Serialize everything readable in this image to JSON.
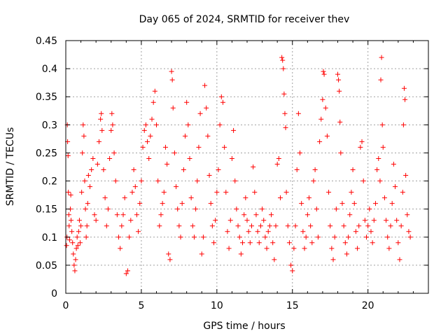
{
  "chart_data": {
    "type": "scatter",
    "title": "Day 065 of 2024, SRMTID for receiver thev",
    "xlabel": "GPS time / hours",
    "ylabel": "SRMTID / TECUs",
    "xlim": [
      0,
      24
    ],
    "ylim": [
      0,
      0.45
    ],
    "xticks": [
      0,
      5,
      10,
      15,
      20
    ],
    "xtick_labels": [
      "0",
      "5",
      "10",
      "15",
      "20"
    ],
    "yticks": [
      0,
      0.05,
      0.1,
      0.15,
      0.2,
      0.25,
      0.3,
      0.35,
      0.4,
      0.45
    ],
    "ytick_labels": [
      "0",
      "0.05",
      "0.1",
      "0.15",
      "0.2",
      "0.25",
      "0.3",
      "0.35",
      "0.4",
      "0.45"
    ],
    "grid": true,
    "marker": "plus",
    "color": "#ff0000",
    "series": [
      {
        "name": "SRMTID",
        "points": [
          [
            0.05,
            0.085
          ],
          [
            0.08,
            0.1
          ],
          [
            0.1,
            0.3
          ],
          [
            0.12,
            0.27
          ],
          [
            0.15,
            0.245
          ],
          [
            0.17,
            0.18
          ],
          [
            0.2,
            0.14
          ],
          [
            0.22,
            0.12
          ],
          [
            0.25,
            0.095
          ],
          [
            0.3,
            0.15
          ],
          [
            0.33,
            0.175
          ],
          [
            0.35,
            0.13
          ],
          [
            0.4,
            0.11
          ],
          [
            0.45,
            0.09
          ],
          [
            0.5,
            0.07
          ],
          [
            0.55,
            0.05
          ],
          [
            0.6,
            0.04
          ],
          [
            0.65,
            0.06
          ],
          [
            0.7,
            0.08
          ],
          [
            0.75,
            0.1
          ],
          [
            0.8,
            0.085
          ],
          [
            0.85,
            0.11
          ],
          [
            0.9,
            0.13
          ],
          [
            0.95,
            0.09
          ],
          [
            1.0,
            0.12
          ],
          [
            1.05,
            0.18
          ],
          [
            1.1,
            0.25
          ],
          [
            1.15,
            0.3
          ],
          [
            1.2,
            0.28
          ],
          [
            1.25,
            0.2
          ],
          [
            1.3,
            0.15
          ],
          [
            1.35,
            0.1
          ],
          [
            1.4,
            0.12
          ],
          [
            1.45,
            0.16
          ],
          [
            1.5,
            0.21
          ],
          [
            1.6,
            0.19
          ],
          [
            1.7,
            0.22
          ],
          [
            1.8,
            0.24
          ],
          [
            1.9,
            0.14
          ],
          [
            2.0,
            0.13
          ],
          [
            2.1,
            0.23
          ],
          [
            2.2,
            0.27
          ],
          [
            2.3,
            0.31
          ],
          [
            2.35,
            0.32
          ],
          [
            2.4,
            0.29
          ],
          [
            2.5,
            0.22
          ],
          [
            2.6,
            0.17
          ],
          [
            2.7,
            0.12
          ],
          [
            2.8,
            0.15
          ],
          [
            2.9,
            0.24
          ],
          [
            3.0,
            0.29
          ],
          [
            3.05,
            0.32
          ],
          [
            3.1,
            0.3
          ],
          [
            3.2,
            0.25
          ],
          [
            3.3,
            0.2
          ],
          [
            3.4,
            0.14
          ],
          [
            3.5,
            0.1
          ],
          [
            3.6,
            0.08
          ],
          [
            3.7,
            0.12
          ],
          [
            3.8,
            0.14
          ],
          [
            3.9,
            0.17
          ],
          [
            4.0,
            0.035
          ],
          [
            4.1,
            0.04
          ],
          [
            4.2,
            0.1
          ],
          [
            4.3,
            0.13
          ],
          [
            4.4,
            0.18
          ],
          [
            4.5,
            0.22
          ],
          [
            4.6,
            0.19
          ],
          [
            4.7,
            0.14
          ],
          [
            4.8,
            0.11
          ],
          [
            4.9,
            0.16
          ],
          [
            5.0,
            0.2
          ],
          [
            5.1,
            0.26
          ],
          [
            5.2,
            0.29
          ],
          [
            5.3,
            0.3
          ],
          [
            5.4,
            0.27
          ],
          [
            5.5,
            0.24
          ],
          [
            5.6,
            0.28
          ],
          [
            5.7,
            0.31
          ],
          [
            5.8,
            0.34
          ],
          [
            5.9,
            0.36
          ],
          [
            6.0,
            0.3
          ],
          [
            6.1,
            0.2
          ],
          [
            6.2,
            0.12
          ],
          [
            6.3,
            0.14
          ],
          [
            6.4,
            0.16
          ],
          [
            6.5,
            0.18
          ],
          [
            6.6,
            0.26
          ],
          [
            6.7,
            0.23
          ],
          [
            6.8,
            0.07
          ],
          [
            6.9,
            0.06
          ],
          [
            7.0,
            0.395
          ],
          [
            7.05,
            0.38
          ],
          [
            7.1,
            0.33
          ],
          [
            7.2,
            0.25
          ],
          [
            7.3,
            0.19
          ],
          [
            7.4,
            0.15
          ],
          [
            7.5,
            0.12
          ],
          [
            7.6,
            0.1
          ],
          [
            7.7,
            0.16
          ],
          [
            7.8,
            0.22
          ],
          [
            7.9,
            0.28
          ],
          [
            8.0,
            0.34
          ],
          [
            8.1,
            0.3
          ],
          [
            8.2,
            0.24
          ],
          [
            8.3,
            0.17
          ],
          [
            8.4,
            0.12
          ],
          [
            8.5,
            0.1
          ],
          [
            8.6,
            0.15
          ],
          [
            8.7,
            0.2
          ],
          [
            8.8,
            0.26
          ],
          [
            8.9,
            0.32
          ],
          [
            9.0,
            0.07
          ],
          [
            9.1,
            0.1
          ],
          [
            9.2,
            0.37
          ],
          [
            9.3,
            0.33
          ],
          [
            9.4,
            0.28
          ],
          [
            9.5,
            0.21
          ],
          [
            9.6,
            0.16
          ],
          [
            9.7,
            0.12
          ],
          [
            9.8,
            0.09
          ],
          [
            9.9,
            0.13
          ],
          [
            10.0,
            0.18
          ],
          [
            10.1,
            0.22
          ],
          [
            10.2,
            0.3
          ],
          [
            10.3,
            0.35
          ],
          [
            10.4,
            0.34
          ],
          [
            10.5,
            0.26
          ],
          [
            10.6,
            0.18
          ],
          [
            10.7,
            0.11
          ],
          [
            10.8,
            0.08
          ],
          [
            10.9,
            0.13
          ],
          [
            11.0,
            0.24
          ],
          [
            11.1,
            0.29
          ],
          [
            11.2,
            0.2
          ],
          [
            11.3,
            0.15
          ],
          [
            11.4,
            0.12
          ],
          [
            11.5,
            0.1
          ],
          [
            11.6,
            0.07
          ],
          [
            11.7,
            0.09
          ],
          [
            11.8,
            0.14
          ],
          [
            11.9,
            0.17
          ],
          [
            12.0,
            0.13
          ],
          [
            12.1,
            0.11
          ],
          [
            12.2,
            0.09
          ],
          [
            12.3,
            0.12
          ],
          [
            12.4,
            0.225
          ],
          [
            12.5,
            0.18
          ],
          [
            12.6,
            0.14
          ],
          [
            12.7,
            0.11
          ],
          [
            12.8,
            0.09
          ],
          [
            12.9,
            0.12
          ],
          [
            13.0,
            0.15
          ],
          [
            13.1,
            0.13
          ],
          [
            13.2,
            0.1
          ],
          [
            13.3,
            0.08
          ],
          [
            13.4,
            0.11
          ],
          [
            13.5,
            0.12
          ],
          [
            13.6,
            0.14
          ],
          [
            13.7,
            0.09
          ],
          [
            13.8,
            0.06
          ],
          [
            13.9,
            0.12
          ],
          [
            14.0,
            0.23
          ],
          [
            14.1,
            0.24
          ],
          [
            14.2,
            0.17
          ],
          [
            14.3,
            0.42
          ],
          [
            14.35,
            0.415
          ],
          [
            14.4,
            0.4
          ],
          [
            14.45,
            0.355
          ],
          [
            14.5,
            0.32
          ],
          [
            14.55,
            0.295
          ],
          [
            14.6,
            0.18
          ],
          [
            14.7,
            0.12
          ],
          [
            14.8,
            0.09
          ],
          [
            14.9,
            0.05
          ],
          [
            15.0,
            0.04
          ],
          [
            15.1,
            0.08
          ],
          [
            15.2,
            0.12
          ],
          [
            15.3,
            0.22
          ],
          [
            15.4,
            0.32
          ],
          [
            15.5,
            0.25
          ],
          [
            15.6,
            0.16
          ],
          [
            15.7,
            0.11
          ],
          [
            15.8,
            0.08
          ],
          [
            15.9,
            0.1
          ],
          [
            16.0,
            0.14
          ],
          [
            16.1,
            0.17
          ],
          [
            16.2,
            0.12
          ],
          [
            16.3,
            0.09
          ],
          [
            16.4,
            0.2
          ],
          [
            16.5,
            0.22
          ],
          [
            16.6,
            0.15
          ],
          [
            16.7,
            0.1
          ],
          [
            16.8,
            0.27
          ],
          [
            16.9,
            0.31
          ],
          [
            17.0,
            0.345
          ],
          [
            17.05,
            0.395
          ],
          [
            17.1,
            0.39
          ],
          [
            17.2,
            0.33
          ],
          [
            17.3,
            0.28
          ],
          [
            17.4,
            0.18
          ],
          [
            17.5,
            0.12
          ],
          [
            17.6,
            0.08
          ],
          [
            17.7,
            0.06
          ],
          [
            17.8,
            0.1
          ],
          [
            17.9,
            0.15
          ],
          [
            18.0,
            0.39
          ],
          [
            18.05,
            0.38
          ],
          [
            18.1,
            0.36
          ],
          [
            18.15,
            0.305
          ],
          [
            18.2,
            0.25
          ],
          [
            18.3,
            0.16
          ],
          [
            18.4,
            0.12
          ],
          [
            18.5,
            0.09
          ],
          [
            18.6,
            0.07
          ],
          [
            18.7,
            0.1
          ],
          [
            18.8,
            0.14
          ],
          [
            18.9,
            0.18
          ],
          [
            19.0,
            0.22
          ],
          [
            19.1,
            0.16
          ],
          [
            19.2,
            0.11
          ],
          [
            19.3,
            0.08
          ],
          [
            19.4,
            0.12
          ],
          [
            19.5,
            0.26
          ],
          [
            19.6,
            0.27
          ],
          [
            19.7,
            0.2
          ],
          [
            19.8,
            0.13
          ],
          [
            19.9,
            0.1
          ],
          [
            20.0,
            0.12
          ],
          [
            20.1,
            0.15
          ],
          [
            20.2,
            0.11
          ],
          [
            20.3,
            0.09
          ],
          [
            20.4,
            0.13
          ],
          [
            20.5,
            0.16
          ],
          [
            20.6,
            0.22
          ],
          [
            20.7,
            0.24
          ],
          [
            20.8,
            0.2
          ],
          [
            20.85,
            0.38
          ],
          [
            20.9,
            0.42
          ],
          [
            20.95,
            0.3
          ],
          [
            21.0,
            0.26
          ],
          [
            21.1,
            0.17
          ],
          [
            21.2,
            0.13
          ],
          [
            21.3,
            0.1
          ],
          [
            21.4,
            0.08
          ],
          [
            21.5,
            0.12
          ],
          [
            21.6,
            0.16
          ],
          [
            21.7,
            0.23
          ],
          [
            21.8,
            0.19
          ],
          [
            21.9,
            0.13
          ],
          [
            22.0,
            0.09
          ],
          [
            22.1,
            0.06
          ],
          [
            22.2,
            0.12
          ],
          [
            22.3,
            0.18
          ],
          [
            22.35,
            0.3
          ],
          [
            22.4,
            0.365
          ],
          [
            22.45,
            0.345
          ],
          [
            22.5,
            0.21
          ],
          [
            22.6,
            0.14
          ],
          [
            22.7,
            0.11
          ],
          [
            22.8,
            0.1
          ]
        ]
      }
    ]
  }
}
